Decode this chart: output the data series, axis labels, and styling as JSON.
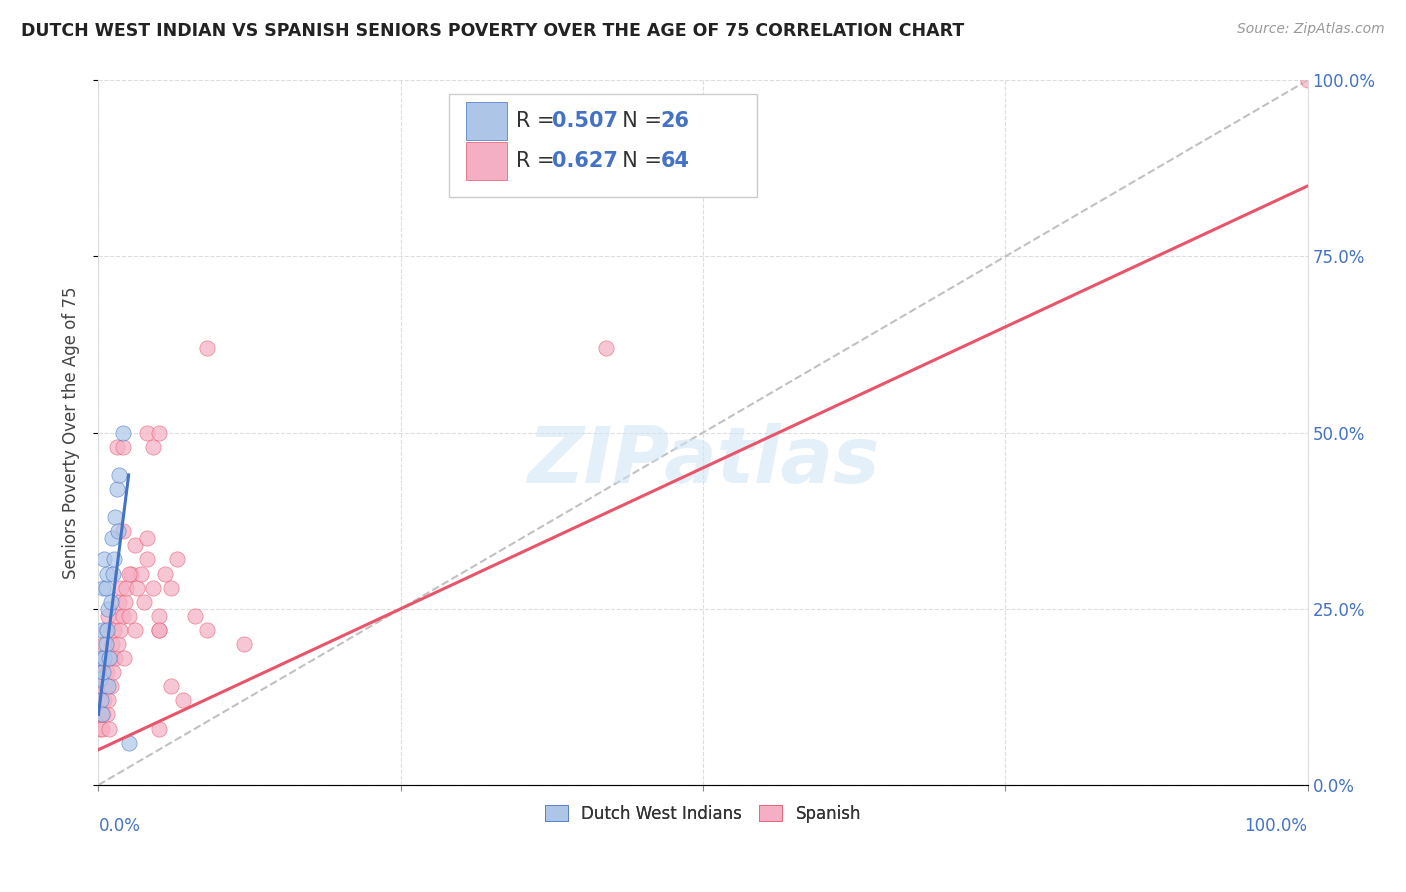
{
  "title": "DUTCH WEST INDIAN VS SPANISH SENIORS POVERTY OVER THE AGE OF 75 CORRELATION CHART",
  "source": "Source: ZipAtlas.com",
  "ylabel": "Seniors Poverty Over the Age of 75",
  "watermark": "ZIPatlas",
  "blue_R": 0.507,
  "blue_N": 26,
  "pink_R": 0.627,
  "pink_N": 64,
  "blue_color": "#adc6e8",
  "pink_color": "#f5afc4",
  "blue_line_color": "#4472c4",
  "pink_line_color": "#e8546a",
  "legend_label_blue": "Dutch West Indians",
  "legend_label_pink": "Spanish",
  "axis_label_color": "#4472c4",
  "title_color": "#222222",
  "grid_color": "#dddddd",
  "background_color": "#ffffff",
  "xlim": [
    0.0,
    1.0
  ],
  "ylim": [
    0.0,
    1.0
  ],
  "xticks": [
    0.0,
    0.25,
    0.5,
    0.75,
    1.0
  ],
  "yticks": [
    0.0,
    0.25,
    0.5,
    0.75,
    1.0
  ],
  "xticklabels_bottom": [
    "0.0%",
    "",
    "",
    "",
    "100.0%"
  ],
  "right_yticklabels": [
    "0.0%",
    "25.0%",
    "50.0%",
    "75.0%",
    "100.0%"
  ],
  "blue_x": [
    0.001,
    0.002,
    0.002,
    0.003,
    0.003,
    0.004,
    0.004,
    0.005,
    0.005,
    0.006,
    0.006,
    0.007,
    0.007,
    0.008,
    0.008,
    0.009,
    0.01,
    0.011,
    0.012,
    0.013,
    0.014,
    0.015,
    0.016,
    0.017,
    0.02,
    0.025
  ],
  "blue_y": [
    0.15,
    0.18,
    0.12,
    0.22,
    0.1,
    0.28,
    0.16,
    0.32,
    0.18,
    0.28,
    0.2,
    0.3,
    0.22,
    0.25,
    0.14,
    0.18,
    0.26,
    0.35,
    0.3,
    0.32,
    0.38,
    0.42,
    0.36,
    0.44,
    0.5,
    0.06
  ],
  "pink_x": [
    0.001,
    0.001,
    0.002,
    0.002,
    0.003,
    0.003,
    0.004,
    0.004,
    0.005,
    0.005,
    0.006,
    0.006,
    0.007,
    0.007,
    0.008,
    0.008,
    0.009,
    0.01,
    0.01,
    0.011,
    0.012,
    0.013,
    0.014,
    0.015,
    0.016,
    0.017,
    0.018,
    0.019,
    0.02,
    0.021,
    0.022,
    0.023,
    0.025,
    0.027,
    0.03,
    0.032,
    0.035,
    0.038,
    0.04,
    0.045,
    0.05,
    0.055,
    0.06,
    0.065,
    0.04,
    0.045,
    0.05,
    0.06,
    0.07,
    0.08,
    0.09,
    0.12,
    0.015,
    0.02,
    0.03,
    0.05,
    0.05,
    0.42,
    1.0,
    0.02,
    0.025,
    0.05,
    0.09,
    0.04
  ],
  "pink_y": [
    0.08,
    0.12,
    0.1,
    0.14,
    0.08,
    0.16,
    0.1,
    0.18,
    0.12,
    0.2,
    0.14,
    0.22,
    0.1,
    0.16,
    0.12,
    0.24,
    0.08,
    0.14,
    0.18,
    0.2,
    0.16,
    0.22,
    0.18,
    0.24,
    0.2,
    0.26,
    0.22,
    0.28,
    0.24,
    0.18,
    0.26,
    0.28,
    0.24,
    0.3,
    0.22,
    0.28,
    0.3,
    0.26,
    0.32,
    0.28,
    0.22,
    0.3,
    0.28,
    0.32,
    0.5,
    0.48,
    0.24,
    0.14,
    0.12,
    0.24,
    0.22,
    0.2,
    0.48,
    0.48,
    0.34,
    0.22,
    0.08,
    0.62,
    1.0,
    0.36,
    0.3,
    0.5,
    0.62,
    0.35
  ],
  "blue_line_x": [
    0.0,
    0.025
  ],
  "blue_line_y": [
    0.1,
    0.44
  ],
  "pink_line_x": [
    0.0,
    1.0
  ],
  "pink_line_y": [
    0.05,
    0.85
  ]
}
